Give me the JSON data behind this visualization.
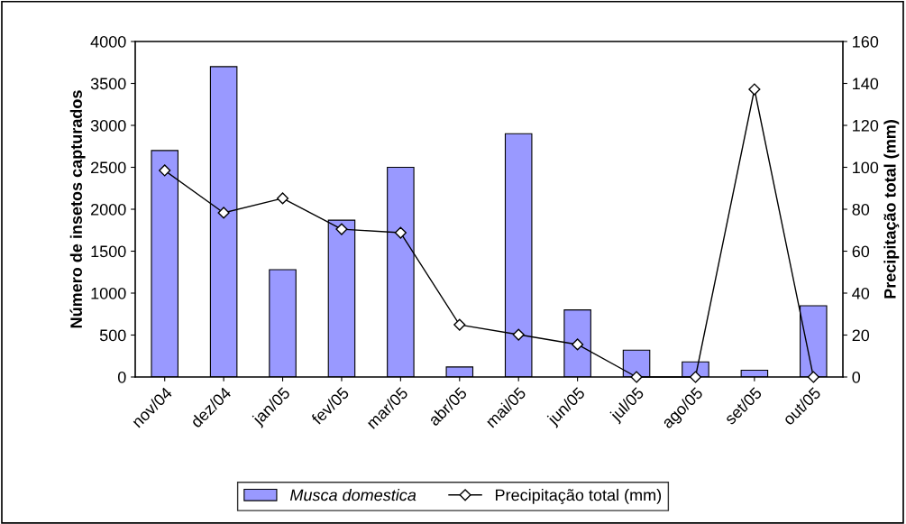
{
  "chart_data": {
    "type": "bar",
    "categories": [
      "nov/04",
      "dez/04",
      "jan/05",
      "fev/05",
      "mar/05",
      "abr/05",
      "mai/05",
      "jun/05",
      "jul/05",
      "ago/05",
      "set/05",
      "out/05"
    ],
    "ylabel": "Número de insetos capturados",
    "y2label": "Precipitação total (mm)",
    "ylim": [
      0,
      4000
    ],
    "yticks": [
      0,
      500,
      1000,
      1500,
      2000,
      2500,
      3000,
      3500,
      4000
    ],
    "y2lim": [
      0,
      160
    ],
    "y2ticks": [
      0,
      20,
      40,
      60,
      80,
      100,
      120,
      140,
      160
    ],
    "grid": false,
    "legend": "bottom",
    "series": [
      {
        "name": "Musca domestica",
        "color": "#9999ff",
        "values": [
          2700,
          3700,
          1280,
          1870,
          2500,
          120,
          2900,
          800,
          320,
          180,
          80,
          850
        ]
      },
      {
        "name": "Precipitação total (mm)",
        "type": "line",
        "axis": "y2",
        "color": "#000000",
        "marker": "diamond",
        "values": [
          98.5,
          78.3,
          85.2,
          70.5,
          68.8,
          24.9,
          20.2,
          15.5,
          0,
          0,
          137.2,
          0
        ]
      }
    ]
  }
}
